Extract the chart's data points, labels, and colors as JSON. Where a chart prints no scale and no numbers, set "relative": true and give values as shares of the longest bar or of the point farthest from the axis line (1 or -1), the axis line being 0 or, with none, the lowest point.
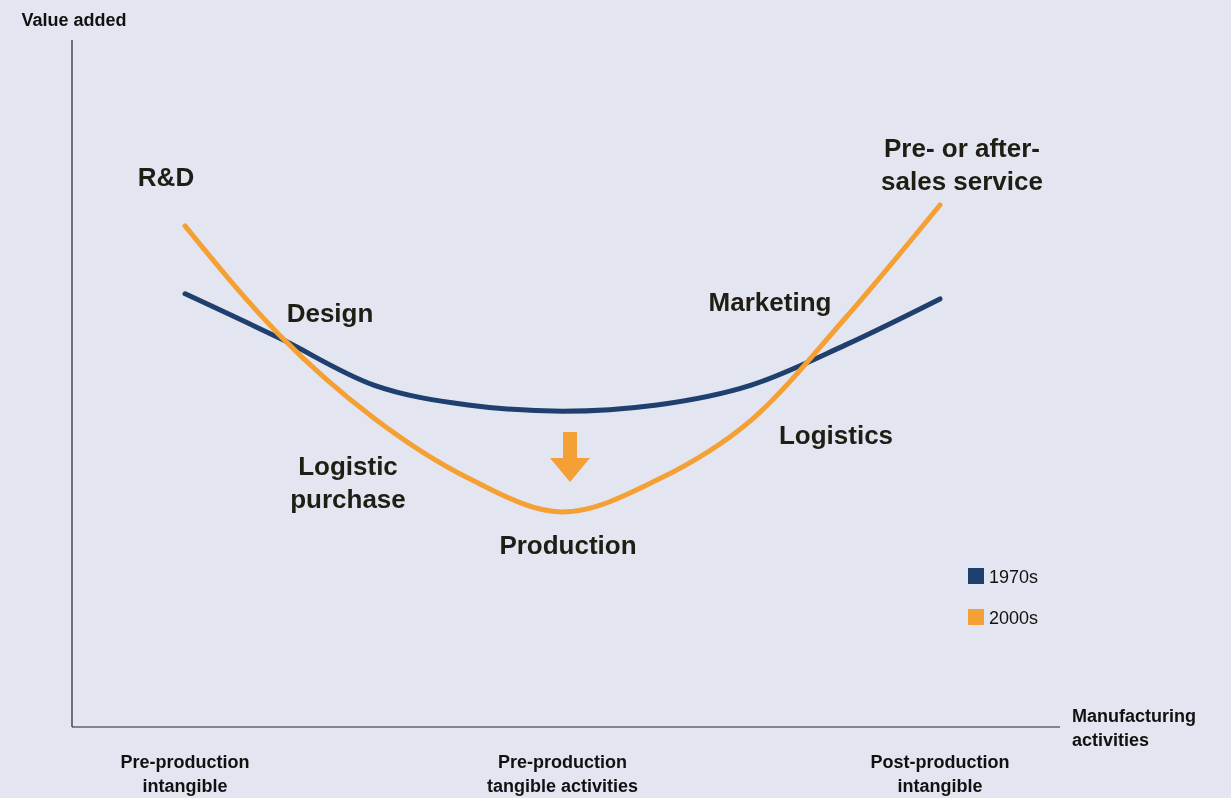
{
  "chart_data": {
    "type": "line",
    "relative": true,
    "xlabel": "Manufacturing activities",
    "categories": [
      "Pre-production intangible",
      null,
      null,
      null,
      "Pre-production tangible activities",
      null,
      null,
      null,
      "Post-production intangible"
    ],
    "series": [
      {
        "name": "1970s",
        "color": "#1f3f6e",
        "values": [
          0.83,
          0.745,
          0.655,
          0.617,
          0.605,
          0.617,
          0.655,
          0.732,
          0.82
        ]
      },
      {
        "name": "2000s",
        "color": "#f4a034",
        "values": [
          0.96,
          0.751,
          0.592,
          0.477,
          0.412,
          0.473,
          0.588,
          0.784,
          1
        ]
      }
    ],
    "annotations": [
      "R&D",
      "Design",
      "Logistic purchase",
      "Production",
      "Marketing",
      "Logistics",
      "Pre- or after-sales service",
      "Value added"
    ],
    "legend": "right",
    "marker": "none",
    "line_style": "solid"
  }
}
